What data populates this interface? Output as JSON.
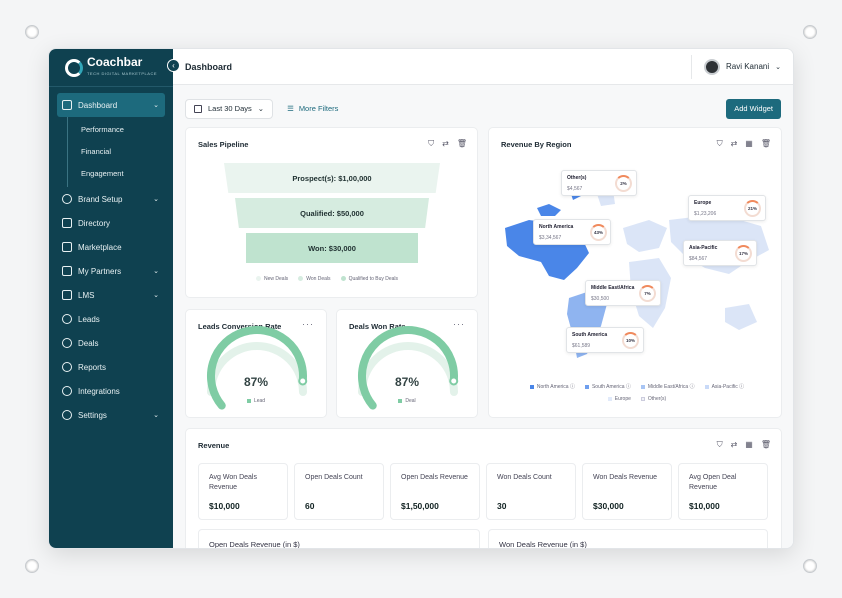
{
  "app": {
    "logo_name": "Coachbar",
    "logo_tagline": "TECH DIGITAL MARKETPLACE"
  },
  "header": {
    "title": "Dashboard",
    "user_name": "Ravi Kanani"
  },
  "sidebar": {
    "items": [
      {
        "label": "Dashboard"
      },
      {
        "label": "Brand Setup"
      },
      {
        "label": "Directory"
      },
      {
        "label": "Marketplace"
      },
      {
        "label": "My Partners"
      },
      {
        "label": "LMS"
      },
      {
        "label": "Leads"
      },
      {
        "label": "Deals"
      },
      {
        "label": "Reports"
      },
      {
        "label": "Integrations"
      },
      {
        "label": "Settings"
      }
    ],
    "dashboard_sub": [
      {
        "label": "Performance"
      },
      {
        "label": "Financial"
      },
      {
        "label": "Engagement"
      }
    ]
  },
  "toolbar": {
    "date_range": "Last 30 Days",
    "more_filters": "More Filters",
    "add_widget": "Add Widget"
  },
  "pipeline": {
    "title": "Sales Pipeline",
    "stages": [
      {
        "label": "Prospect(s): $1,00,000"
      },
      {
        "label": "Qualified: $50,000"
      },
      {
        "label": "Won: $30,000"
      }
    ],
    "legend": [
      "New Deals",
      "Won Deals",
      "Qualified to Buy Deals"
    ],
    "colors": [
      "#eaf4ef",
      "#d6ece0",
      "#bfe3cf"
    ]
  },
  "leads_conversion": {
    "title": "Leads Conversion Rate",
    "value": "87%",
    "percent": 87,
    "legend": "Lead"
  },
  "deals_won": {
    "title": "Deals Won Rate",
    "value": "87%",
    "percent": 87,
    "legend": "Deal"
  },
  "region": {
    "title": "Revenue By Region",
    "regions": [
      {
        "name": "Other(s)",
        "value": "$4,567",
        "pct": "2%"
      },
      {
        "name": "North America",
        "value": "$3,34,567",
        "pct": "43%"
      },
      {
        "name": "Middle East/Africa",
        "value": "$30,500",
        "pct": "7%"
      },
      {
        "name": "South America",
        "value": "$61,589",
        "pct": "10%"
      },
      {
        "name": "Europe",
        "value": "$1,23,206",
        "pct": "21%"
      },
      {
        "name": "Asia-Pacific",
        "value": "$84,567",
        "pct": "17%"
      }
    ],
    "legend": [
      "North America",
      "South America",
      "Middle East/Africa",
      "Asia-Pacific",
      "Europe",
      "Other(s)"
    ]
  },
  "revenue": {
    "title": "Revenue",
    "kpis": [
      {
        "label": "Avg Won Deals Revenue",
        "value": "$10,000"
      },
      {
        "label": "Open Deals Count",
        "value": "60"
      },
      {
        "label": "Open Deals Revenue",
        "value": "$1,50,000"
      },
      {
        "label": "Won Deals Count",
        "value": "30"
      },
      {
        "label": "Won Deals Revenue",
        "value": "$30,000"
      },
      {
        "label": "Avg Open Deal Revenue",
        "value": "$10,000"
      }
    ],
    "open_chart_title": "Open Deals Revenue (in $)",
    "won_chart_title": "Won Deals Revenue (in $)"
  },
  "colors": {
    "sidebar": "#0f4150",
    "accent": "#1d6a7d",
    "gauge": "#7fcca4",
    "map_blue": "#4a86e8"
  }
}
